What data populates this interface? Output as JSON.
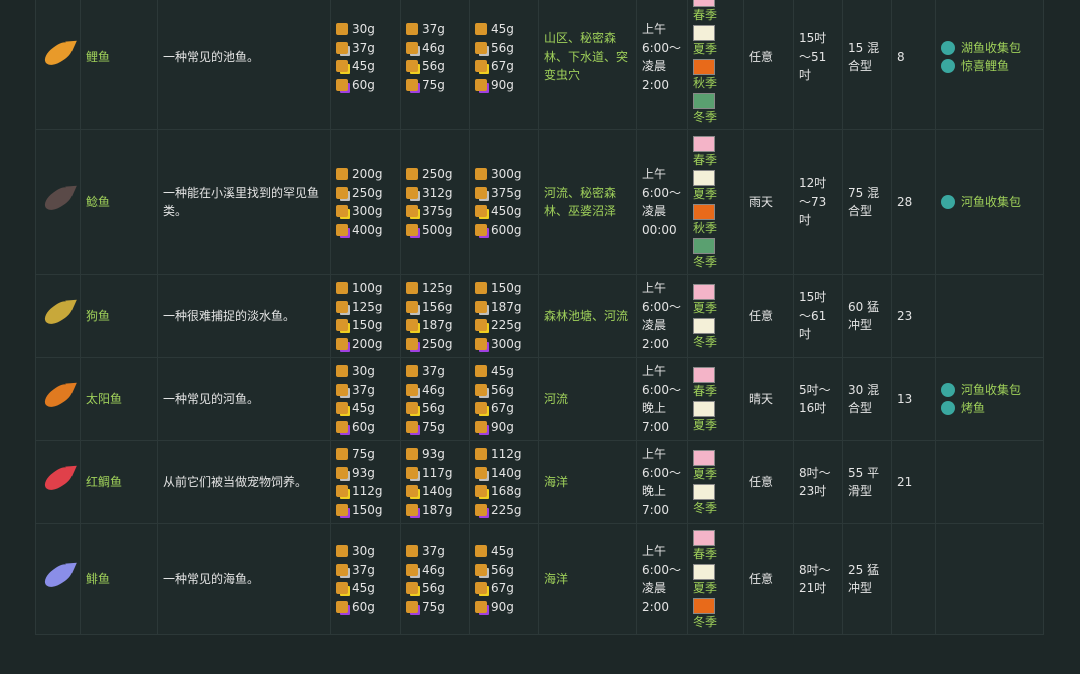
{
  "rows": [
    {
      "name": "鲤鱼",
      "description": "一种常见的池鱼。",
      "prices": [
        [
          "30g",
          "37g",
          "45g",
          "60g"
        ],
        [
          "37g",
          "46g",
          "56g",
          "75g"
        ],
        [
          "45g",
          "56g",
          "67g",
          "90g"
        ]
      ],
      "location": "山区、秘密森林、下水道、突变虫穴",
      "time": "上午6:00～凌晨2:00",
      "seasons": [
        "春季",
        "夏季",
        "秋季",
        "冬季"
      ],
      "weather": "任意",
      "size": "15吋～51吋",
      "difficulty": "15 混合型",
      "xp": "8",
      "uses": [
        "湖鱼收集包",
        "惊喜鲤鱼"
      ]
    },
    {
      "name": "鲶鱼",
      "description": "一种能在小溪里找到的罕见鱼类。",
      "prices": [
        [
          "200g",
          "250g",
          "300g",
          "400g"
        ],
        [
          "250g",
          "312g",
          "375g",
          "500g"
        ],
        [
          "300g",
          "375g",
          "450g",
          "600g"
        ]
      ],
      "location": "河流、秘密森林、巫婆沼泽",
      "time": "上午6:00～凌晨00:00",
      "seasons": [
        "春季",
        "夏季",
        "秋季",
        "冬季"
      ],
      "weather": "雨天",
      "size": "12吋～73吋",
      "difficulty": "75 混合型",
      "xp": "28",
      "uses": [
        "河鱼收集包"
      ]
    },
    {
      "name": "狗鱼",
      "description": "一种很难捕捉的淡水鱼。",
      "prices": [
        [
          "100g",
          "125g",
          "150g",
          "200g"
        ],
        [
          "125g",
          "156g",
          "187g",
          "250g"
        ],
        [
          "150g",
          "187g",
          "225g",
          "300g"
        ]
      ],
      "location": "森林池塘、河流",
      "time": "上午6:00～凌晨2:00",
      "seasons": [
        "夏季",
        "冬季"
      ],
      "weather": "任意",
      "size": "15吋～61吋",
      "difficulty": "60 猛冲型",
      "xp": "23",
      "uses": []
    },
    {
      "name": "太阳鱼",
      "description": "一种常见的河鱼。",
      "prices": [
        [
          "30g",
          "37g",
          "45g",
          "60g"
        ],
        [
          "37g",
          "46g",
          "56g",
          "75g"
        ],
        [
          "45g",
          "56g",
          "67g",
          "90g"
        ]
      ],
      "location": "河流",
      "time": "上午6:00～晚上7:00",
      "seasons": [
        "春季",
        "夏季"
      ],
      "weather": "晴天",
      "size": "5吋～16吋",
      "difficulty": "30 混合型",
      "xp": "13",
      "uses": [
        "河鱼收集包",
        "烤鱼"
      ]
    },
    {
      "name": "红鲷鱼",
      "description": "从前它们被当做宠物饲养。",
      "prices": [
        [
          "75g",
          "93g",
          "112g",
          "150g"
        ],
        [
          "93g",
          "117g",
          "140g",
          "187g"
        ],
        [
          "112g",
          "140g",
          "168g",
          "225g"
        ]
      ],
      "location": "海洋",
      "time": "上午6:00～晚上7:00",
      "seasons": [
        "夏季",
        "冬季"
      ],
      "weather": "任意",
      "size": "8吋～23吋",
      "difficulty": "55 平滑型",
      "xp": "21",
      "uses": []
    },
    {
      "name": "鲱鱼",
      "description": "一种常见的海鱼。",
      "prices": [
        [
          "30g",
          "37g",
          "45g",
          "60g"
        ],
        [
          "37g",
          "46g",
          "56g",
          "75g"
        ],
        [
          "45g",
          "56g",
          "67g",
          "90g"
        ]
      ],
      "location": "海洋",
      "time": "上午6:00～凌晨2:00",
      "seasons": [
        "春季",
        "夏季",
        "冬季"
      ],
      "weather": "任意",
      "size": "8吋～21吋",
      "difficulty": "25 猛冲型",
      "uses": []
    }
  ]
}
